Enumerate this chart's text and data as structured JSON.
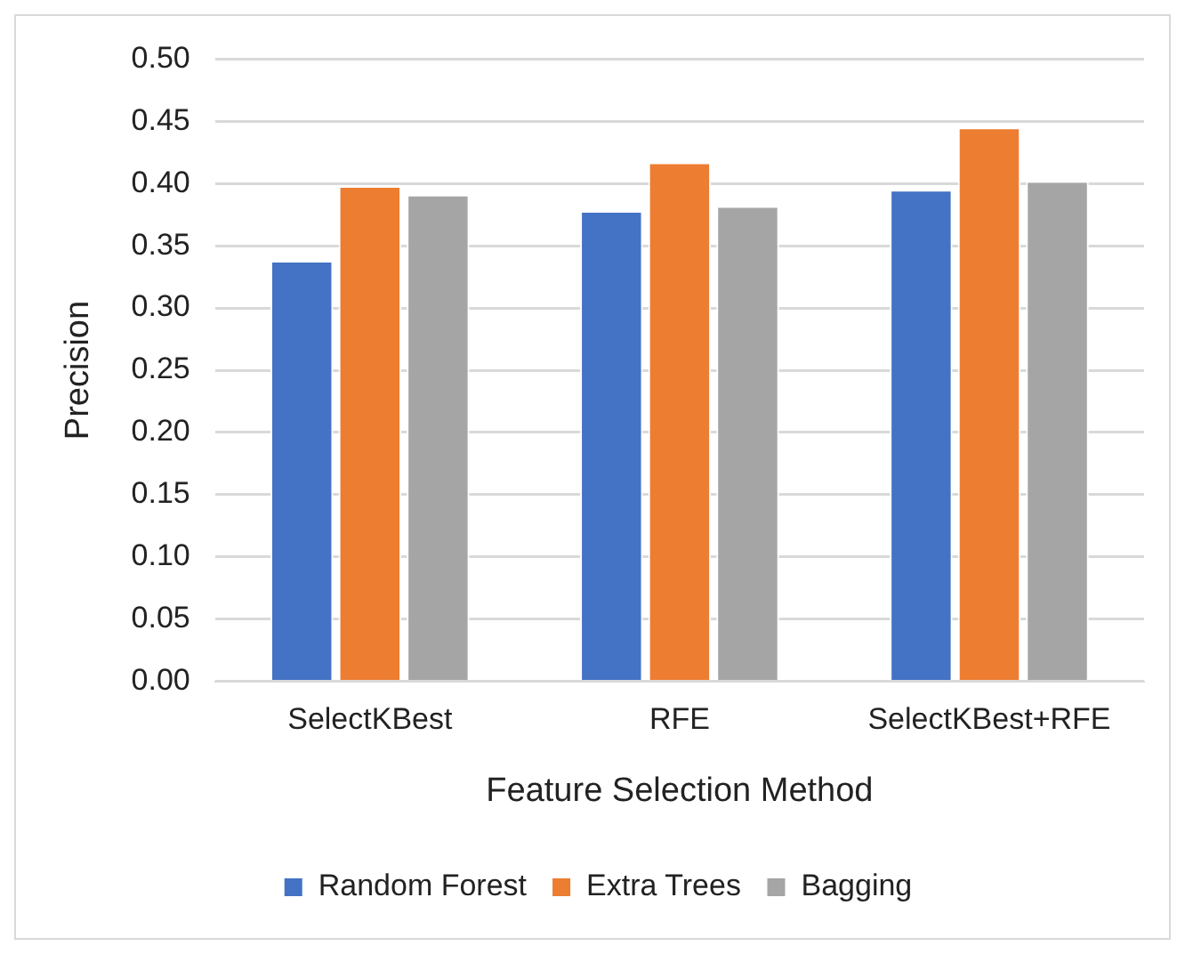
{
  "chart_data": {
    "type": "bar",
    "xlabel": "Feature Selection Method",
    "ylabel": "Precision",
    "categories": [
      "SelectKBest",
      "RFE",
      "SelectKBest+RFE"
    ],
    "series": [
      {
        "name": "Random Forest",
        "color": "#4472c4",
        "values": [
          0.338,
          0.378,
          0.395
        ]
      },
      {
        "name": "Extra Trees",
        "color": "#ed7d31",
        "values": [
          0.398,
          0.417,
          0.445
        ]
      },
      {
        "name": "Bagging",
        "color": "#a5a5a5",
        "values": [
          0.391,
          0.382,
          0.402
        ]
      }
    ],
    "ylim": [
      0,
      0.5
    ],
    "yticks": [
      {
        "value": 0,
        "label": "0.00"
      },
      {
        "value": 0.05,
        "label": "0.05"
      },
      {
        "value": 0.1,
        "label": "0.10"
      },
      {
        "value": 0.15,
        "label": "0.15"
      },
      {
        "value": 0.2,
        "label": "0.20"
      },
      {
        "value": 0.25,
        "label": "0.25"
      },
      {
        "value": 0.3,
        "label": "0.30"
      },
      {
        "value": 0.35,
        "label": "0.35"
      },
      {
        "value": 0.4,
        "label": "0.40"
      },
      {
        "value": 0.45,
        "label": "0.45"
      },
      {
        "value": 0.5,
        "label": "0.50"
      }
    ],
    "grid": "y",
    "legend": "bottom"
  }
}
